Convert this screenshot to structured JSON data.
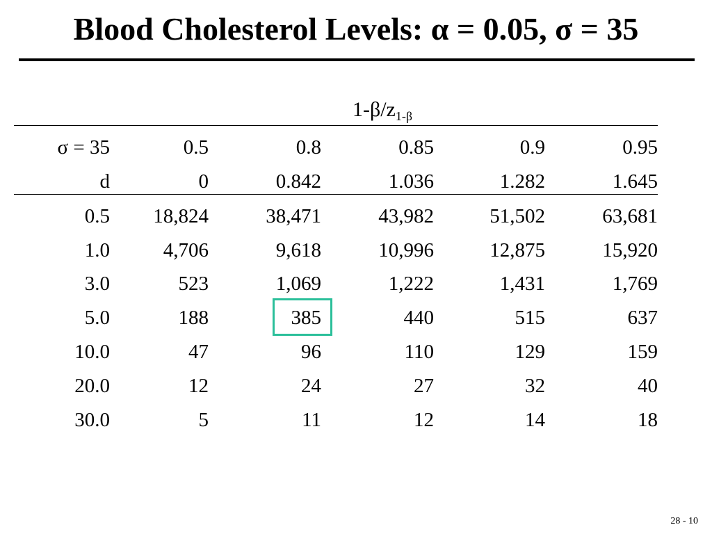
{
  "title": "Blood Cholesterol Levels: α = 0.05,  σ = 35",
  "table": {
    "header_main": "1-β/z",
    "header_sub": "1-β",
    "power_row": [
      "σ = 35",
      "0.5",
      "0.8",
      "0.85",
      "0.9",
      "0.95"
    ],
    "z_row": [
      "d",
      "0",
      "0.842",
      "1.036",
      "1.282",
      "1.645"
    ],
    "rows": [
      [
        "0.5",
        "18,824",
        "38,471",
        "43,982",
        "51,502",
        "63,681"
      ],
      [
        "1.0",
        "4,706",
        "9,618",
        "10,996",
        "12,875",
        "15,920"
      ],
      [
        "3.0",
        "523",
        "1,069",
        "1,222",
        "1,431",
        "1,769"
      ],
      [
        "5.0",
        "188",
        "385",
        "440",
        "515",
        "637"
      ],
      [
        "10.0",
        "47",
        "96",
        "110",
        "129",
        "159"
      ],
      [
        "20.0",
        "12",
        "24",
        "27",
        "32",
        "40"
      ],
      [
        "30.0",
        "5",
        "11",
        "12",
        "14",
        "18"
      ]
    ],
    "highlight_color": "#2bbf9a"
  },
  "page_number": "28 - 10"
}
